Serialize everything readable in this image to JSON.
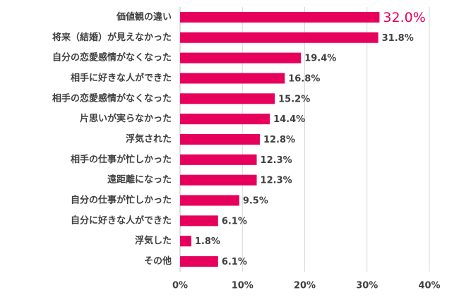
{
  "chart_data": {
    "type": "bar",
    "orientation": "horizontal",
    "categories": [
      "価値観の違い",
      "将来（結婚）が見えなかった",
      "自分の恋愛感情がなくなった",
      "相手に好きな人ができた",
      "相手の恋愛感情がなくなった",
      "片思いが実らなかった",
      "浮気された",
      "相手の仕事が忙しかった",
      "遠距離になった",
      "自分の仕事が忙しかった",
      "自分に好きな人ができた",
      "浮気した",
      "その他"
    ],
    "values": [
      32.0,
      31.8,
      19.4,
      16.8,
      15.2,
      14.4,
      12.8,
      12.3,
      12.3,
      9.5,
      6.1,
      1.8,
      6.1
    ],
    "value_labels": [
      "32.0%",
      "31.8%",
      "19.4%",
      "16.8%",
      "15.2%",
      "14.4%",
      "12.8%",
      "12.3%",
      "12.3%",
      "9.5%",
      "6.1%",
      "1.8%",
      "6.1%"
    ],
    "xlim": [
      0,
      40
    ],
    "x_ticks": [
      0,
      10,
      20,
      30,
      40
    ],
    "x_tick_labels": [
      "0%",
      "10%",
      "20%",
      "30%",
      "40%"
    ],
    "grid": "vertical",
    "legend": "none",
    "bar_color": "#e6005c",
    "highlight_label_color": "#e6005c",
    "grid_color": "#d9d9d9",
    "text_color": "#404040"
  }
}
